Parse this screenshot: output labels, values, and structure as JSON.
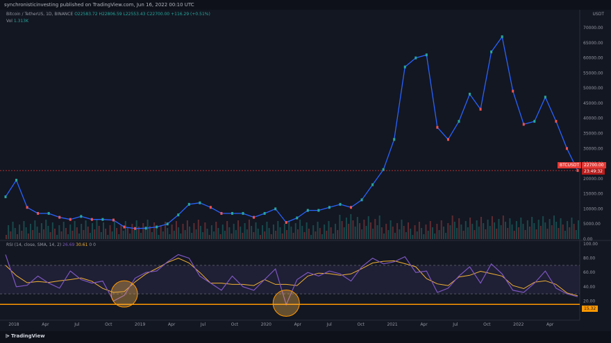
{
  "header": {
    "publisher": "synchronisticinvesting published on TradingView.com, Jun 16, 2022 00:10 UTC"
  },
  "symbol": {
    "name": "Bitcoin / TetherUS, 1D, BINANCE",
    "ohlc": "O22583.72 H22806.59 L22553.43 C22700.00 +116.29 (+0.51%)"
  },
  "volume": {
    "label": "Vol",
    "value": "1.313K"
  },
  "rsi_legend": {
    "label": "RSI (14, close, SMA, 14, 2)",
    "rsi": "26.69",
    "ma": "30.61",
    "extra": "0 0"
  },
  "price_axis": {
    "currency": "USDT"
  },
  "price_tag": {
    "symbol": "BTCUSDT",
    "price": "22700.00",
    "countdown": "23:49:32"
  },
  "rsi_tag": {
    "value": "15.32"
  },
  "footer": {
    "brand": "TradingView"
  },
  "colors": {
    "background": "#131722",
    "up": "#26a69a",
    "down": "#ef5350",
    "wick": "#2962ff",
    "rsi": "#7e57c2",
    "rsi_ma": "#f2b233",
    "support": "#ff9800"
  },
  "chart_data": [
    {
      "type": "line",
      "title": "Bitcoin / TetherUS, 1D, BINANCE",
      "x": [
        "2018-01",
        "2018-02",
        "2018-03",
        "2018-04",
        "2018-05",
        "2018-06",
        "2018-07",
        "2018-08",
        "2018-09",
        "2018-10",
        "2018-11",
        "2018-12",
        "2019-01",
        "2019-02",
        "2019-03",
        "2019-04",
        "2019-05",
        "2019-06",
        "2019-07",
        "2019-08",
        "2019-09",
        "2019-10",
        "2019-11",
        "2019-12",
        "2020-01",
        "2020-02",
        "2020-03",
        "2020-04",
        "2020-05",
        "2020-06",
        "2020-07",
        "2020-08",
        "2020-09",
        "2020-10",
        "2020-11",
        "2020-12",
        "2021-01",
        "2021-02",
        "2021-03",
        "2021-04",
        "2021-05",
        "2021-06",
        "2021-07",
        "2021-08",
        "2021-09",
        "2021-10",
        "2021-11",
        "2021-12",
        "2022-01",
        "2022-02",
        "2022-03",
        "2022-04",
        "2022-05",
        "2022-06"
      ],
      "values": [
        14000,
        19500,
        10500,
        8500,
        8500,
        7200,
        6500,
        7500,
        6500,
        6500,
        6300,
        4000,
        3500,
        3600,
        4000,
        5000,
        8000,
        11500,
        12000,
        10500,
        8500,
        8500,
        8500,
        7200,
        8500,
        10000,
        5500,
        7000,
        9500,
        9500,
        10500,
        11500,
        10500,
        13000,
        18000,
        23000,
        33000,
        57000,
        60000,
        61000,
        37000,
        33000,
        39000,
        48000,
        43000,
        62000,
        67000,
        49000,
        38000,
        39000,
        47000,
        39000,
        30000,
        22700
      ],
      "ylabel": "USDT",
      "ylim": [
        0,
        70000
      ],
      "yticks": [
        "70000.00",
        "65000.00",
        "60000.00",
        "55000.00",
        "50000.00",
        "45000.00",
        "40000.00",
        "35000.00",
        "30000.00",
        "25000.00",
        "20000.00",
        "15000.00",
        "10000.00",
        "5000.00",
        "0.00"
      ],
      "current_price": 22700
    },
    {
      "type": "line",
      "title": "RSI (14, close, SMA, 14, 2)",
      "x": [
        "2018-01",
        "2018-02",
        "2018-03",
        "2018-04",
        "2018-05",
        "2018-06",
        "2018-07",
        "2018-08",
        "2018-09",
        "2018-10",
        "2018-11",
        "2018-12",
        "2019-01",
        "2019-02",
        "2019-03",
        "2019-04",
        "2019-05",
        "2019-06",
        "2019-07",
        "2019-08",
        "2019-09",
        "2019-10",
        "2019-11",
        "2019-12",
        "2020-01",
        "2020-02",
        "2020-03",
        "2020-04",
        "2020-05",
        "2020-06",
        "2020-07",
        "2020-08",
        "2020-09",
        "2020-10",
        "2020-11",
        "2020-12",
        "2021-01",
        "2021-02",
        "2021-03",
        "2021-04",
        "2021-05",
        "2021-06",
        "2021-07",
        "2021-08",
        "2021-09",
        "2021-10",
        "2021-11",
        "2021-12",
        "2022-01",
        "2022-02",
        "2022-03",
        "2022-04",
        "2022-05",
        "2022-06"
      ],
      "values": [
        85,
        40,
        42,
        55,
        45,
        38,
        62,
        50,
        45,
        48,
        20,
        28,
        52,
        60,
        62,
        75,
        85,
        80,
        55,
        45,
        35,
        55,
        40,
        35,
        50,
        65,
        15,
        50,
        60,
        55,
        62,
        58,
        48,
        68,
        80,
        72,
        75,
        82,
        60,
        62,
        32,
        38,
        55,
        68,
        45,
        72,
        58,
        35,
        32,
        45,
        62,
        38,
        30,
        26
      ],
      "ylim": [
        0,
        100
      ],
      "yticks": [
        "100.00",
        "80.00",
        "60.00",
        "40.00",
        "20.00"
      ],
      "overbought": 70,
      "oversold": 30,
      "support_line": 15.32,
      "highlighted_lows": [
        "2018-12",
        "2020-03"
      ]
    }
  ],
  "x_axis": {
    "labels": [
      "2018",
      "Apr",
      "Jul",
      "Oct",
      "2019",
      "Apr",
      "Jul",
      "Oct",
      "2020",
      "Apr",
      "Jul",
      "Oct",
      "2021",
      "Apr",
      "Jul",
      "Oct",
      "2022",
      "Apr"
    ]
  }
}
